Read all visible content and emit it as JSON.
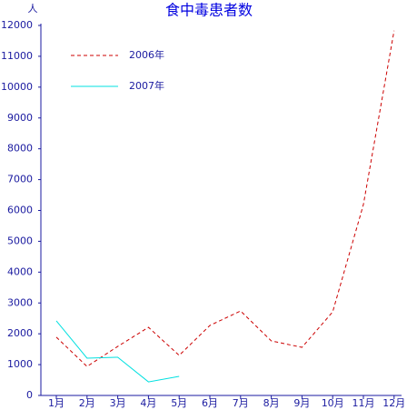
{
  "chart_data": {
    "type": "line",
    "title": "食中毒患者数",
    "ylabel": "人",
    "categories": [
      "1月",
      "2月",
      "3月",
      "4月",
      "5月",
      "6月",
      "7月",
      "8月",
      "9月",
      "10月",
      "11月",
      "12月"
    ],
    "series": [
      {
        "name": "2006年",
        "color": "#cc0000",
        "style": "dashed",
        "values": [
          1890,
          940,
          1590,
          2210,
          1300,
          2270,
          2740,
          1770,
          1560,
          2710,
          6190,
          11830
        ]
      },
      {
        "name": "2007年",
        "color": "#00e0e0",
        "style": "solid",
        "values": [
          2420,
          1210,
          1240,
          440,
          620,
          null,
          null,
          null,
          null,
          null,
          null,
          null
        ]
      }
    ],
    "ylim": [
      0,
      12000
    ],
    "yticks": [
      0,
      1000,
      2000,
      3000,
      4000,
      5000,
      6000,
      7000,
      8000,
      9000,
      10000,
      11000,
      12000
    ],
    "grid": false,
    "legend": "upper left"
  }
}
